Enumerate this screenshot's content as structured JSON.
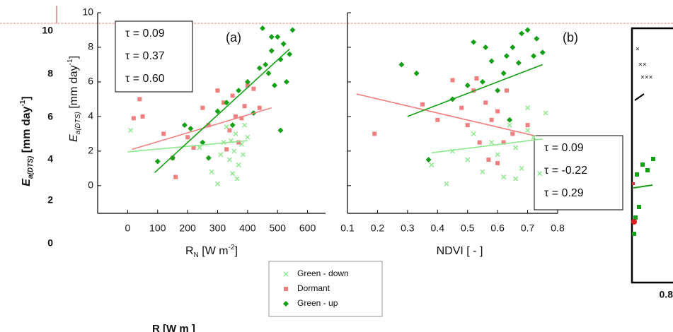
{
  "chart_data": [
    {
      "type": "scatter",
      "panel_label": "(a)",
      "xlabel": [
        {
          "t": "R"
        },
        {
          "t": "N",
          "s": "sub"
        },
        {
          "t": " [W m"
        },
        {
          "t": "-2",
          "s": "sup"
        },
        {
          "t": "]"
        }
      ],
      "ylabel": [
        {
          "t": "E",
          "s": "i"
        },
        {
          "t": "a(DTS)",
          "s": "sub-i"
        },
        {
          "t": " [mm day"
        },
        {
          "t": "-1",
          "s": "sup"
        },
        {
          "t": "]"
        }
      ],
      "xlim": [
        -100,
        660
      ],
      "ylim": [
        -1.6,
        10
      ],
      "xticks": [
        0,
        100,
        200,
        300,
        400,
        500,
        600
      ],
      "yticks": [
        0,
        2,
        4,
        6,
        8,
        10
      ],
      "ytick_labels": true,
      "legend": "below",
      "series": [
        {
          "name": "Green - down",
          "color": "#8ee88e",
          "marker": "x",
          "tau_label": "τ = 0.09",
          "x": [
            10,
            240,
            280,
            300,
            320,
            340,
            350,
            355,
            360,
            370,
            380,
            390,
            400,
            330,
            310,
            365,
            385,
            345
          ],
          "values": [
            3.2,
            2.2,
            0.8,
            0.1,
            2.5,
            1.5,
            0.7,
            2.0,
            3.0,
            1.2,
            2.4,
            3.5,
            2.8,
            3.4,
            1.8,
            0.4,
            1.8,
            2.6
          ],
          "fit_x": [
            0,
            400
          ],
          "fit_y": [
            1.95,
            2.6
          ]
        },
        {
          "name": "Dormant",
          "color": "#f08080",
          "marker": "square",
          "tau_label": "τ = 0.37",
          "x": [
            40,
            20,
            50,
            120,
            150,
            160,
            200,
            220,
            250,
            270,
            300,
            320,
            340,
            350,
            360,
            370,
            380,
            390,
            400,
            420,
            440,
            330
          ],
          "values": [
            5.0,
            3.9,
            4.0,
            3.0,
            1.6,
            0.5,
            2.8,
            2.2,
            4.5,
            3.5,
            5.5,
            4.8,
            3.2,
            5.2,
            4.0,
            2.5,
            3.9,
            4.6,
            5.8,
            5.6,
            4.5,
            2.1
          ],
          "fit_x": [
            15,
            480
          ],
          "fit_y": [
            2.1,
            4.5
          ]
        },
        {
          "name": "Green - up",
          "color": "#14a014",
          "marker": "diamond",
          "tau_label": "τ = 0.60",
          "x": [
            100,
            150,
            190,
            210,
            250,
            270,
            300,
            330,
            350,
            370,
            400,
            420,
            440,
            450,
            460,
            470,
            480,
            490,
            500,
            510,
            520,
            530,
            540,
            550,
            510,
            480
          ],
          "values": [
            1.4,
            1.6,
            3.5,
            3.3,
            2.5,
            1.6,
            4.3,
            4.8,
            3.5,
            5.5,
            6.0,
            4.2,
            6.8,
            9.1,
            7.0,
            6.5,
            7.8,
            5.8,
            8.6,
            7.3,
            8.2,
            6.0,
            7.6,
            9.0,
            3.2,
            8.6
          ],
          "fit_x": [
            90,
            540
          ],
          "fit_y": [
            0.75,
            7.9
          ]
        }
      ]
    },
    {
      "type": "scatter",
      "panel_label": "(b)",
      "xlabel": [
        {
          "t": "NDVI [ - ]"
        }
      ],
      "xlim": [
        0.1,
        0.8
      ],
      "ylim": [
        -1.6,
        10
      ],
      "xticks": [
        0.1,
        0.2,
        0.3,
        0.4,
        0.5,
        0.6,
        0.7,
        0.8
      ],
      "yticks": [
        0,
        2,
        4,
        6,
        8,
        10
      ],
      "ytick_labels": false,
      "legend": "none",
      "series": [
        {
          "name": "Green - down",
          "color": "#8ee88e",
          "marker": "x",
          "tau_label": "τ = 0.09",
          "x": [
            0.38,
            0.43,
            0.45,
            0.5,
            0.52,
            0.55,
            0.58,
            0.6,
            0.62,
            0.64,
            0.66,
            0.68,
            0.7,
            0.72,
            0.74,
            0.76,
            0.7,
            0.66
          ],
          "values": [
            1.2,
            0.1,
            2.0,
            1.5,
            3.0,
            0.8,
            2.5,
            1.8,
            0.5,
            3.5,
            2.2,
            1.0,
            4.5,
            2.8,
            0.7,
            4.2,
            3.2,
            0.4
          ],
          "fit_x": [
            0.38,
            0.75
          ],
          "fit_y": [
            1.9,
            2.7
          ]
        },
        {
          "name": "Dormant",
          "color": "#f08080",
          "marker": "square",
          "tau_label": "τ = -0.22",
          "x": [
            0.19,
            0.35,
            0.4,
            0.45,
            0.48,
            0.5,
            0.52,
            0.54,
            0.56,
            0.57,
            0.58,
            0.6,
            0.62,
            0.63,
            0.65,
            0.7,
            0.53,
            0.6
          ],
          "values": [
            3.0,
            4.7,
            3.8,
            6.1,
            4.5,
            3.5,
            5.5,
            2.5,
            4.8,
            1.5,
            3.8,
            4.3,
            2.5,
            5.5,
            3.0,
            3.5,
            6.2,
            1.3
          ],
          "fit_x": [
            0.13,
            0.72
          ],
          "fit_y": [
            5.3,
            2.9
          ]
        },
        {
          "name": "Green - up",
          "color": "#14a014",
          "marker": "diamond",
          "tau_label": "τ = 0.29",
          "x": [
            0.28,
            0.33,
            0.37,
            0.45,
            0.5,
            0.52,
            0.55,
            0.58,
            0.6,
            0.62,
            0.63,
            0.65,
            0.67,
            0.68,
            0.7,
            0.72,
            0.73,
            0.75,
            0.64,
            0.56
          ],
          "values": [
            7.0,
            6.5,
            1.5,
            5.0,
            5.8,
            8.3,
            6.0,
            7.2,
            5.5,
            6.5,
            7.5,
            8.0,
            7.1,
            8.8,
            9.0,
            7.5,
            8.5,
            7.7,
            3.8,
            8.0
          ],
          "fit_x": [
            0.3,
            0.75
          ],
          "fit_y": [
            4.0,
            7.0
          ]
        }
      ]
    }
  ],
  "background": {
    "ytick_labels": [
      "10",
      "8",
      "6",
      "4",
      "2",
      "0"
    ],
    "ylabel": [
      {
        "t": "E",
        "s": "i"
      },
      {
        "t": "a(DTS)",
        "s": "sub-i"
      },
      {
        "t": " [mm day"
      },
      {
        "t": "-1",
        "s": "sup"
      },
      {
        "t": "]"
      }
    ],
    "right_tick": "0.8",
    "bottom_label": "R  [W m  ]"
  }
}
